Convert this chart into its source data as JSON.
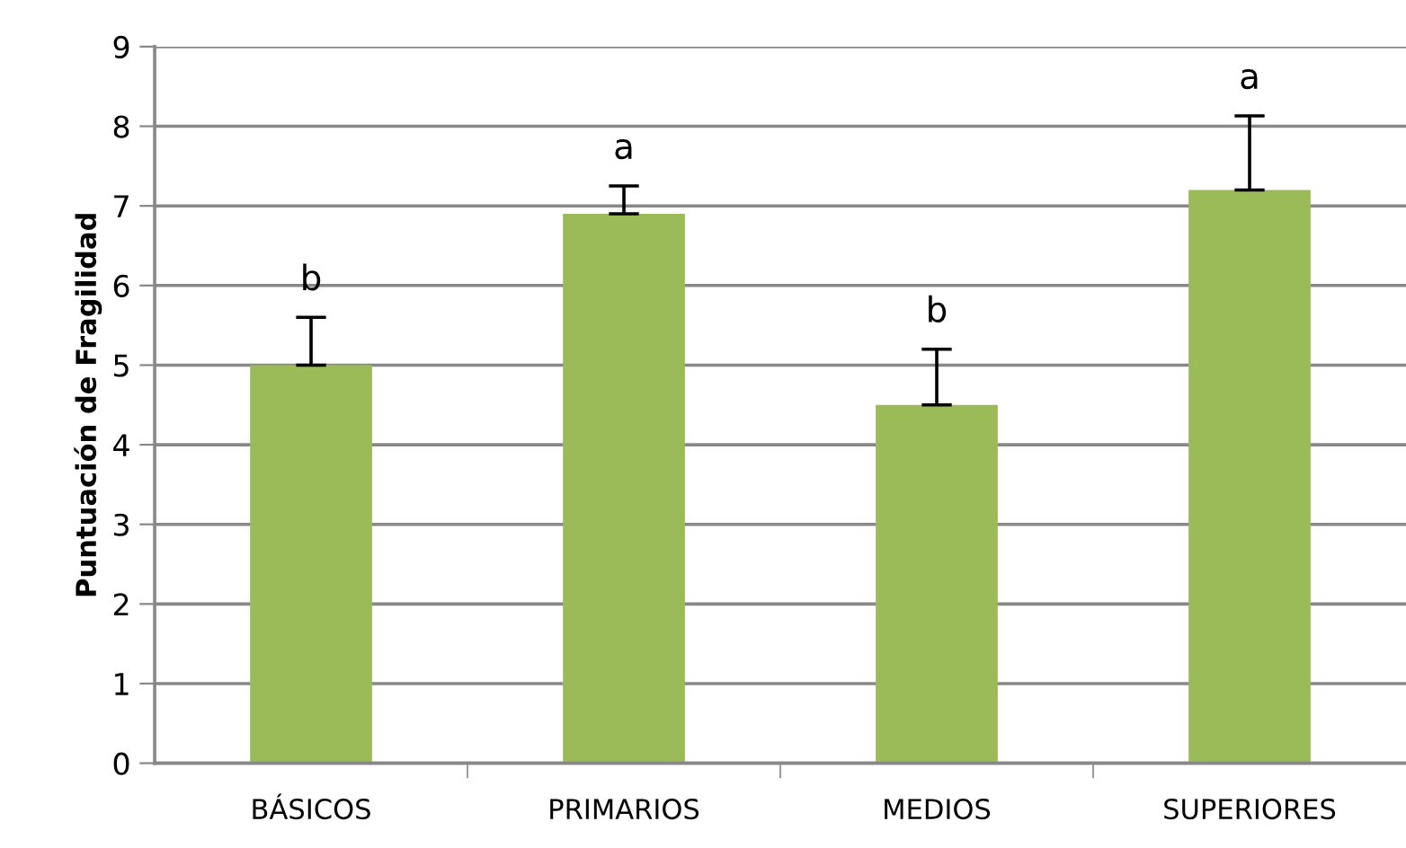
{
  "chart_data": {
    "type": "bar",
    "ylabel": "Puntuación de Fragilidad",
    "categories": [
      "BÁSICOS",
      "PRIMARIOS",
      "MEDIOS",
      "SUPERIORES"
    ],
    "values": [
      5.0,
      6.9,
      4.5,
      7.2
    ],
    "errors": [
      [
        5.0,
        5.6
      ],
      [
        6.9,
        7.25
      ],
      [
        4.5,
        5.2
      ],
      [
        7.2,
        8.13
      ]
    ],
    "color": "#9bbb59",
    "ylim": [
      0,
      9
    ],
    "yticks": [
      0,
      1,
      2,
      3,
      4,
      5,
      6,
      7,
      8,
      9
    ],
    "grid": "y",
    "annotations": [
      {
        "text": "b",
        "x": "BÁSICOS",
        "y": 5.6
      },
      {
        "text": "a",
        "x": "PRIMARIOS",
        "y": 7.25
      },
      {
        "text": "b",
        "x": "MEDIOS",
        "y": 5.2
      },
      {
        "text": "a",
        "x": "SUPERIORES",
        "y": 8.13
      }
    ]
  }
}
